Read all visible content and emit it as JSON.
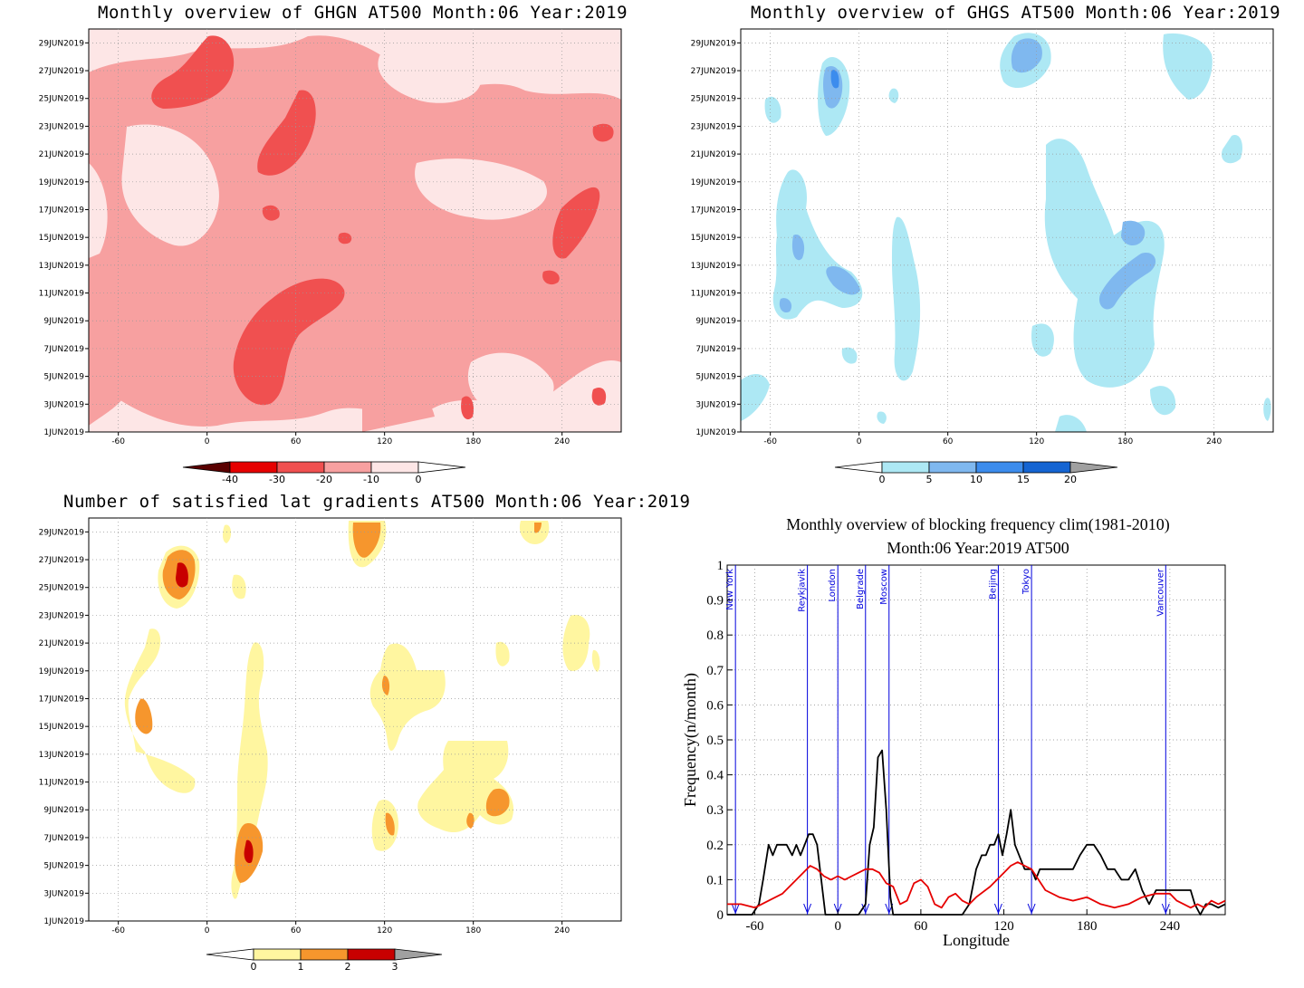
{
  "panels": {
    "ghgn": {
      "title": "Monthly overview of GHGN AT500 Month:06 Year:2019"
    },
    "ghgs": {
      "title": "Monthly overview of GHGS AT500 Month:06 Year:2019"
    },
    "grad": {
      "title": "Number of satisfied lat gradients AT500 Month:06 Year:2019"
    },
    "freq": {
      "title_line1": "Monthly overview of blocking frequency clim(1981-2010)",
      "title_line2": "Month:06 Year:2019  AT500"
    }
  },
  "y_ticks": [
    "29JUN2019",
    "27JUN2019",
    "25JUN2019",
    "23JUN2019",
    "21JUN2019",
    "19JUN2019",
    "17JUN2019",
    "15JUN2019",
    "13JUN2019",
    "11JUN2019",
    "9JUN2019",
    "7JUN2019",
    "5JUN2019",
    "3JUN2019",
    "1JUN2019"
  ],
  "x_ticks": [
    "-60",
    "0",
    "60",
    "120",
    "180",
    "240"
  ],
  "colorbars": {
    "ghgn": {
      "labels": [
        "-40",
        "-30",
        "-20",
        "-10",
        "0"
      ],
      "colors": [
        "#5a0000",
        "#e60000",
        "#f05050",
        "#f7a0a0",
        "#fde6e6"
      ]
    },
    "ghgs": {
      "labels": [
        "0",
        "5",
        "10",
        "15",
        "20"
      ],
      "colors": [
        "#ade8f4",
        "#7fb8ef",
        "#3c8ced",
        "#1464d2",
        "#a0a0a0"
      ]
    },
    "grad": {
      "labels": [
        "0",
        "1",
        "2",
        "3"
      ],
      "colors": [
        "#fff6a0",
        "#f6962d",
        "#c80000",
        "#a0a0a0"
      ]
    }
  },
  "field_colors": {
    "ghgn": [
      "#fde6e6",
      "#f7a0a0",
      "#f05050",
      "#e60000"
    ],
    "ghgs": [
      "#ade8f4",
      "#7fb8ef",
      "#3c8ced"
    ],
    "grad": [
      "#fff6a0",
      "#f6962d",
      "#c80000"
    ]
  },
  "chart_data": {
    "type": "line",
    "title": "Monthly overview of blocking frequency clim(1981-2010) Month:06 Year:2019  AT500",
    "xlabel": "Longitude",
    "ylabel": "Frequency(n/month)",
    "xlim": [
      -80,
      280
    ],
    "ylim": [
      0,
      1
    ],
    "x_ticks": [
      "-60",
      "0",
      "60",
      "120",
      "180",
      "240"
    ],
    "y_ticks": [
      "0",
      "0.1",
      "0.2",
      "0.3",
      "0.4",
      "0.5",
      "0.6",
      "0.7",
      "0.8",
      "0.9",
      "1"
    ],
    "grid": true,
    "cities": [
      {
        "name": "New York",
        "lon": -74
      },
      {
        "name": "Reykjavik",
        "lon": -22
      },
      {
        "name": "London",
        "lon": 0
      },
      {
        "name": "Belgrade",
        "lon": 20
      },
      {
        "name": "Moscow",
        "lon": 37
      },
      {
        "name": "Beijing",
        "lon": 116
      },
      {
        "name": "Tokyo",
        "lon": 140
      },
      {
        "name": "Vancouver",
        "lon": 237
      }
    ],
    "series": [
      {
        "color": "#000000",
        "x": [
          -80,
          -62,
          -57,
          -54,
          -50,
          -47,
          -44,
          -41,
          -37,
          -33,
          -30,
          -27,
          -24,
          -21,
          -18,
          -15,
          -12,
          -9,
          -6,
          -3,
          0,
          5,
          10,
          15,
          20,
          23,
          26,
          29,
          32,
          35,
          38,
          40,
          43,
          50,
          60,
          80,
          90,
          95,
          100,
          104,
          107,
          110,
          113,
          116,
          119,
          122,
          125,
          128,
          131,
          135,
          140,
          143,
          146,
          150,
          160,
          170,
          175,
          180,
          185,
          190,
          195,
          200,
          205,
          210,
          215,
          220,
          225,
          230,
          240,
          250,
          255,
          258,
          262,
          266,
          270,
          275,
          280
        ],
        "y": [
          0,
          0,
          0.03,
          0.1,
          0.2,
          0.17,
          0.2,
          0.2,
          0.2,
          0.17,
          0.2,
          0.17,
          0.2,
          0.23,
          0.23,
          0.2,
          0.1,
          0,
          0,
          0,
          0,
          0,
          0,
          0,
          0.03,
          0.2,
          0.25,
          0.45,
          0.47,
          0.3,
          0.05,
          0,
          0,
          0,
          0,
          0,
          0,
          0.03,
          0.13,
          0.17,
          0.17,
          0.2,
          0.2,
          0.23,
          0.17,
          0.23,
          0.3,
          0.2,
          0.17,
          0.13,
          0.13,
          0.1,
          0.13,
          0.13,
          0.13,
          0.13,
          0.17,
          0.2,
          0.2,
          0.17,
          0.13,
          0.13,
          0.1,
          0.1,
          0.13,
          0.07,
          0.03,
          0.07,
          0.07,
          0.07,
          0.07,
          0.03,
          0,
          0.03,
          0.03,
          0.02,
          0.03
        ]
      },
      {
        "color": "#e60000",
        "x": [
          -80,
          -70,
          -60,
          -50,
          -40,
          -30,
          -25,
          -20,
          -15,
          -10,
          -5,
          0,
          5,
          10,
          15,
          20,
          25,
          30,
          35,
          40,
          45,
          50,
          55,
          60,
          65,
          70,
          75,
          80,
          85,
          90,
          95,
          100,
          110,
          120,
          125,
          130,
          135,
          140,
          145,
          150,
          160,
          170,
          180,
          190,
          200,
          210,
          220,
          230,
          240,
          245,
          250,
          255,
          260,
          265,
          270,
          275,
          280
        ],
        "y": [
          0.03,
          0.03,
          0.02,
          0.04,
          0.06,
          0.1,
          0.12,
          0.14,
          0.13,
          0.11,
          0.1,
          0.11,
          0.1,
          0.11,
          0.12,
          0.13,
          0.13,
          0.12,
          0.09,
          0.08,
          0.03,
          0.04,
          0.09,
          0.1,
          0.08,
          0.03,
          0.02,
          0.05,
          0.06,
          0.04,
          0.03,
          0.05,
          0.08,
          0.12,
          0.14,
          0.15,
          0.14,
          0.13,
          0.1,
          0.07,
          0.05,
          0.04,
          0.05,
          0.03,
          0.02,
          0.03,
          0.05,
          0.06,
          0.06,
          0.04,
          0.03,
          0.02,
          0.03,
          0.02,
          0.04,
          0.03,
          0.04
        ]
      }
    ]
  }
}
